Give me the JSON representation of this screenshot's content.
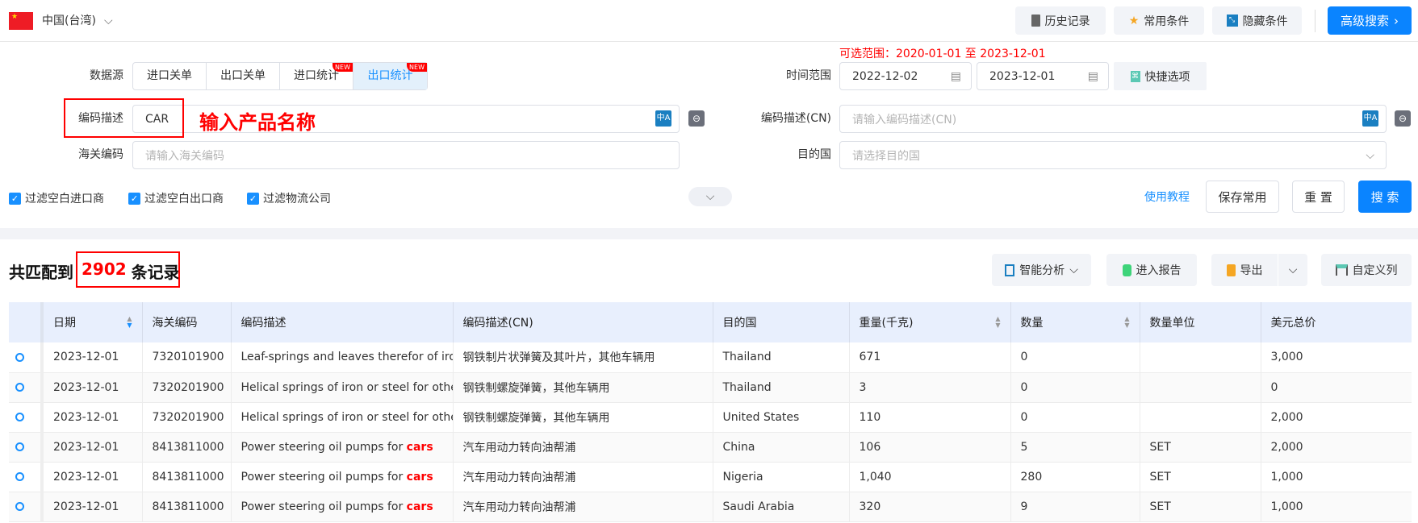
{
  "topbar": {
    "country": "中国(台湾)",
    "history": "历史记录",
    "favorites": "常用条件",
    "hide": "隐藏条件",
    "advanced": "高级搜索"
  },
  "filters": {
    "range_hint": "可选范围：2020-01-01 至 2023-12-01",
    "source_label": "数据源",
    "sources": [
      {
        "label": "进口关单",
        "badge": ""
      },
      {
        "label": "出口关单",
        "badge": ""
      },
      {
        "label": "进口统计",
        "badge": "NEW"
      },
      {
        "label": "出口统计",
        "badge": "NEW"
      }
    ],
    "active_source": "出口统计",
    "time_label": "时间范围",
    "date_from": "2022-12-02",
    "date_to": "2023-12-01",
    "quick": "快捷选项",
    "desc_label": "编码描述",
    "desc_value": "CAR",
    "annotation": "输入产品名称",
    "desc_cn_label": "编码描述(CN)",
    "desc_cn_placeholder": "请输入编码描述(CN)",
    "hs_label": "海关编码",
    "hs_placeholder": "请输入海关编码",
    "dest_label": "目的国",
    "dest_placeholder": "请选择目的国",
    "checks": [
      "过滤空白进口商",
      "过滤空白出口商",
      "过滤物流公司"
    ],
    "tutorial": "使用教程",
    "save": "保存常用",
    "reset": "重 置",
    "search": "搜 索"
  },
  "results": {
    "prefix": "共匹配到",
    "count": "2902",
    "suffix": "条记录",
    "analysis": "智能分析",
    "report": "进入报告",
    "export": "导出",
    "columns": "自定义列"
  },
  "table": {
    "headers": [
      "日期",
      "海关编码",
      "编码描述",
      "编码描述(CN)",
      "目的国",
      "重量(千克)",
      "数量",
      "数量单位",
      "美元总价"
    ],
    "rows": [
      {
        "date": "2023-12-01",
        "hs": "7320101900",
        "desc": "Leaf-springs and leaves therefor of iro",
        "hl": "",
        "cn": "钢铁制片状弹簧及其叶片，其他车辆用",
        "dest": "Thailand",
        "weight": "671",
        "qty": "0",
        "unit": "",
        "usd": "3,000"
      },
      {
        "date": "2023-12-01",
        "hs": "7320201900",
        "desc": "Helical springs of iron or steel for othe",
        "hl": "",
        "cn": "钢铁制螺旋弹簧，其他车辆用",
        "dest": "Thailand",
        "weight": "3",
        "qty": "0",
        "unit": "",
        "usd": "0"
      },
      {
        "date": "2023-12-01",
        "hs": "7320201900",
        "desc": "Helical springs of iron or steel for othe",
        "hl": "",
        "cn": "钢铁制螺旋弹簧，其他车辆用",
        "dest": "United States",
        "weight": "110",
        "qty": "0",
        "unit": "",
        "usd": "2,000"
      },
      {
        "date": "2023-12-01",
        "hs": "8413811000",
        "desc": "Power steering oil pumps for ",
        "hl": "cars",
        "cn": "汽车用动力转向油帮浦",
        "dest": "China",
        "weight": "106",
        "qty": "5",
        "unit": "SET",
        "usd": "2,000"
      },
      {
        "date": "2023-12-01",
        "hs": "8413811000",
        "desc": "Power steering oil pumps for ",
        "hl": "cars",
        "cn": "汽车用动力转向油帮浦",
        "dest": "Nigeria",
        "weight": "1,040",
        "qty": "280",
        "unit": "SET",
        "usd": "1,000"
      },
      {
        "date": "2023-12-01",
        "hs": "8413811000",
        "desc": "Power steering oil pumps for ",
        "hl": "cars",
        "cn": "汽车用动力转向油帮浦",
        "dest": "Saudi Arabia",
        "weight": "320",
        "qty": "9",
        "unit": "SET",
        "usd": "1,000"
      }
    ]
  },
  "colors": {
    "accent": "#0a84ff",
    "highlight": "#ff0000",
    "header_bg": "#e8effd"
  }
}
